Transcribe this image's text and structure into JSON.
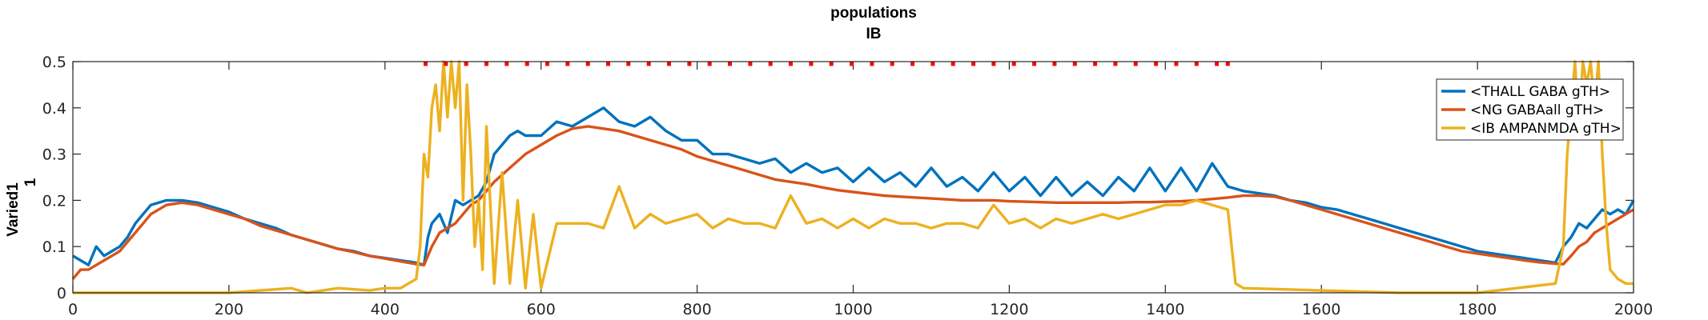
{
  "chart_data": {
    "type": "line",
    "title_lines": [
      "populations",
      "IB"
    ],
    "xlabel": "",
    "ylabel_lines": [
      "Varied1",
      "1"
    ],
    "xlim": [
      0,
      2000
    ],
    "ylim": [
      0,
      0.5
    ],
    "xticks": [
      0,
      200,
      400,
      600,
      800,
      1000,
      1200,
      1400,
      1600,
      1800,
      2000
    ],
    "yticks": [
      0,
      0.1,
      0.2,
      0.3,
      0.4,
      0.5
    ],
    "ytick_labels": [
      "0",
      "0.1",
      "0.2",
      "0.3",
      "0.4",
      "0.5"
    ],
    "legend_position": "top-right",
    "stimulus_markers": {
      "y": 0.495,
      "x": [
        452,
        478,
        504,
        530,
        556,
        582,
        608,
        634,
        660,
        686,
        712,
        738,
        764,
        790,
        816,
        842,
        868,
        894,
        920,
        946,
        972,
        998,
        1024,
        1050,
        1076,
        1102,
        1128,
        1154,
        1180,
        1206,
        1232,
        1258,
        1284,
        1310,
        1336,
        1362,
        1388,
        1414,
        1440,
        1466,
        1480
      ],
      "color": "#ff0000"
    },
    "series": [
      {
        "name": "<THALL GABA gTH>",
        "color": "#0072bd",
        "x": [
          0,
          10,
          20,
          30,
          40,
          50,
          60,
          70,
          80,
          90,
          100,
          120,
          140,
          160,
          180,
          200,
          220,
          240,
          260,
          280,
          300,
          320,
          340,
          360,
          380,
          400,
          420,
          440,
          450,
          455,
          460,
          470,
          480,
          490,
          500,
          510,
          520,
          530,
          540,
          550,
          560,
          570,
          580,
          600,
          620,
          640,
          660,
          680,
          700,
          720,
          740,
          760,
          780,
          800,
          820,
          840,
          860,
          880,
          900,
          920,
          940,
          960,
          980,
          1000,
          1020,
          1040,
          1060,
          1080,
          1100,
          1120,
          1140,
          1160,
          1180,
          1200,
          1220,
          1240,
          1260,
          1280,
          1300,
          1320,
          1340,
          1360,
          1380,
          1400,
          1420,
          1440,
          1460,
          1480,
          1500,
          1520,
          1540,
          1560,
          1580,
          1600,
          1620,
          1640,
          1660,
          1680,
          1700,
          1720,
          1740,
          1760,
          1780,
          1800,
          1820,
          1840,
          1860,
          1880,
          1900,
          1910,
          1920,
          1930,
          1940,
          1950,
          1960,
          1970,
          1980,
          1990,
          2000
        ],
        "y": [
          0.08,
          0.07,
          0.06,
          0.1,
          0.08,
          0.09,
          0.1,
          0.12,
          0.15,
          0.17,
          0.19,
          0.2,
          0.2,
          0.195,
          0.185,
          0.175,
          0.16,
          0.15,
          0.14,
          0.125,
          0.115,
          0.105,
          0.095,
          0.09,
          0.08,
          0.075,
          0.07,
          0.065,
          0.06,
          0.12,
          0.15,
          0.17,
          0.13,
          0.2,
          0.19,
          0.2,
          0.21,
          0.24,
          0.3,
          0.32,
          0.34,
          0.35,
          0.34,
          0.34,
          0.37,
          0.36,
          0.38,
          0.4,
          0.37,
          0.36,
          0.38,
          0.35,
          0.33,
          0.33,
          0.3,
          0.3,
          0.29,
          0.28,
          0.29,
          0.26,
          0.28,
          0.26,
          0.27,
          0.24,
          0.27,
          0.24,
          0.26,
          0.23,
          0.27,
          0.23,
          0.25,
          0.22,
          0.26,
          0.22,
          0.25,
          0.21,
          0.25,
          0.21,
          0.24,
          0.21,
          0.25,
          0.22,
          0.27,
          0.22,
          0.27,
          0.22,
          0.28,
          0.23,
          0.22,
          0.215,
          0.21,
          0.2,
          0.195,
          0.185,
          0.18,
          0.17,
          0.16,
          0.15,
          0.14,
          0.13,
          0.12,
          0.11,
          0.1,
          0.09,
          0.085,
          0.08,
          0.075,
          0.07,
          0.065,
          0.1,
          0.12,
          0.15,
          0.14,
          0.16,
          0.18,
          0.17,
          0.18,
          0.17,
          0.2
        ]
      },
      {
        "name": "<NG GABAall gTH>",
        "color": "#d95319",
        "x": [
          0,
          10,
          20,
          30,
          40,
          50,
          60,
          70,
          80,
          90,
          100,
          120,
          140,
          160,
          180,
          200,
          220,
          240,
          260,
          280,
          300,
          320,
          340,
          360,
          380,
          400,
          420,
          440,
          450,
          460,
          470,
          480,
          490,
          500,
          510,
          520,
          530,
          540,
          560,
          580,
          600,
          620,
          640,
          660,
          680,
          700,
          720,
          740,
          760,
          780,
          800,
          820,
          840,
          860,
          880,
          900,
          920,
          940,
          960,
          980,
          1000,
          1020,
          1040,
          1060,
          1080,
          1100,
          1120,
          1140,
          1160,
          1180,
          1200,
          1220,
          1240,
          1260,
          1280,
          1300,
          1320,
          1340,
          1360,
          1380,
          1400,
          1420,
          1440,
          1460,
          1480,
          1500,
          1520,
          1540,
          1560,
          1580,
          1600,
          1620,
          1640,
          1660,
          1680,
          1700,
          1720,
          1740,
          1760,
          1780,
          1800,
          1820,
          1840,
          1860,
          1880,
          1900,
          1910,
          1920,
          1930,
          1940,
          1950,
          1960,
          1970,
          1980,
          1990,
          2000
        ],
        "y": [
          0.03,
          0.05,
          0.05,
          0.06,
          0.07,
          0.08,
          0.09,
          0.11,
          0.13,
          0.15,
          0.17,
          0.19,
          0.195,
          0.19,
          0.18,
          0.17,
          0.16,
          0.145,
          0.135,
          0.125,
          0.115,
          0.105,
          0.095,
          0.088,
          0.08,
          0.074,
          0.068,
          0.062,
          0.06,
          0.1,
          0.13,
          0.14,
          0.15,
          0.17,
          0.19,
          0.2,
          0.22,
          0.24,
          0.27,
          0.3,
          0.32,
          0.34,
          0.355,
          0.36,
          0.355,
          0.35,
          0.34,
          0.33,
          0.32,
          0.31,
          0.295,
          0.285,
          0.275,
          0.265,
          0.255,
          0.245,
          0.24,
          0.235,
          0.228,
          0.222,
          0.218,
          0.214,
          0.21,
          0.208,
          0.206,
          0.204,
          0.202,
          0.2,
          0.2,
          0.2,
          0.198,
          0.197,
          0.196,
          0.195,
          0.195,
          0.195,
          0.195,
          0.195,
          0.196,
          0.196,
          0.197,
          0.198,
          0.2,
          0.203,
          0.206,
          0.21,
          0.21,
          0.208,
          0.2,
          0.19,
          0.18,
          0.17,
          0.16,
          0.15,
          0.14,
          0.13,
          0.12,
          0.11,
          0.1,
          0.09,
          0.085,
          0.08,
          0.075,
          0.07,
          0.066,
          0.063,
          0.062,
          0.08,
          0.1,
          0.11,
          0.13,
          0.14,
          0.15,
          0.16,
          0.17,
          0.18
        ]
      },
      {
        "name": "<IB AMPANMDA gTH>",
        "color": "#edb120",
        "x": [
          0,
          100,
          200,
          280,
          300,
          340,
          380,
          400,
          420,
          440,
          445,
          450,
          455,
          460,
          465,
          470,
          475,
          480,
          485,
          490,
          495,
          500,
          505,
          510,
          515,
          520,
          525,
          530,
          540,
          550,
          560,
          570,
          580,
          590,
          600,
          620,
          640,
          660,
          680,
          700,
          720,
          740,
          760,
          780,
          800,
          820,
          840,
          860,
          880,
          900,
          920,
          940,
          960,
          980,
          1000,
          1020,
          1040,
          1060,
          1080,
          1100,
          1120,
          1140,
          1160,
          1180,
          1200,
          1220,
          1240,
          1260,
          1280,
          1300,
          1320,
          1340,
          1360,
          1380,
          1400,
          1420,
          1440,
          1460,
          1480,
          1490,
          1500,
          1600,
          1700,
          1800,
          1850,
          1900,
          1910,
          1915,
          1920,
          1925,
          1930,
          1935,
          1940,
          1945,
          1950,
          1955,
          1960,
          1965,
          1970,
          1975,
          1980,
          1990,
          2000
        ],
        "y": [
          0.0,
          0.0,
          0.0,
          0.01,
          0.0,
          0.01,
          0.005,
          0.01,
          0.01,
          0.03,
          0.1,
          0.3,
          0.25,
          0.4,
          0.45,
          0.35,
          0.5,
          0.38,
          0.5,
          0.4,
          0.5,
          0.2,
          0.45,
          0.3,
          0.1,
          0.2,
          0.05,
          0.36,
          0.02,
          0.26,
          0.02,
          0.2,
          0.01,
          0.17,
          0.01,
          0.15,
          0.15,
          0.15,
          0.14,
          0.23,
          0.14,
          0.17,
          0.15,
          0.16,
          0.17,
          0.14,
          0.16,
          0.15,
          0.15,
          0.14,
          0.21,
          0.15,
          0.16,
          0.14,
          0.16,
          0.14,
          0.16,
          0.15,
          0.15,
          0.14,
          0.15,
          0.15,
          0.14,
          0.19,
          0.15,
          0.16,
          0.14,
          0.16,
          0.15,
          0.16,
          0.17,
          0.16,
          0.17,
          0.18,
          0.19,
          0.19,
          0.2,
          0.19,
          0.18,
          0.02,
          0.01,
          0.005,
          0.0,
          0.0,
          0.01,
          0.02,
          0.1,
          0.3,
          0.4,
          0.5,
          0.35,
          0.5,
          0.45,
          0.5,
          0.4,
          0.5,
          0.3,
          0.15,
          0.05,
          0.04,
          0.03,
          0.02,
          0.02
        ]
      }
    ]
  }
}
